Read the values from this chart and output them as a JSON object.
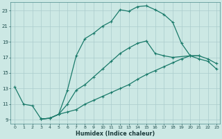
{
  "xlabel": "Humidex (Indice chaleur)",
  "bg_color": "#cce8e4",
  "grid_color": "#aacccc",
  "line_color": "#1a7a6a",
  "xlim_min": -0.5,
  "xlim_max": 23.4,
  "ylim_min": 8.5,
  "ylim_max": 24.1,
  "yticks": [
    9,
    11,
    13,
    15,
    17,
    19,
    21,
    23
  ],
  "xticks": [
    0,
    1,
    2,
    3,
    4,
    5,
    6,
    7,
    8,
    9,
    10,
    11,
    12,
    13,
    14,
    15,
    16,
    17,
    18,
    19,
    20,
    21,
    22,
    23
  ],
  "curve1_x": [
    0,
    1,
    2,
    3,
    4,
    5,
    6,
    7,
    8,
    9,
    10,
    11,
    12,
    13,
    14,
    15,
    16,
    17,
    18,
    19,
    20,
    21
  ],
  "curve1_y": [
    13.2,
    11.0,
    10.8,
    9.1,
    9.2,
    9.7,
    12.8,
    17.2,
    19.4,
    20.1,
    21.0,
    21.6,
    23.1,
    22.9,
    23.5,
    23.6,
    23.1,
    22.5,
    21.5,
    18.8,
    17.2,
    17.2
  ],
  "curve2_x": [
    3,
    4,
    5,
    6,
    7,
    8,
    9,
    10,
    11,
    12,
    13,
    14,
    15,
    16,
    17,
    18,
    20,
    21,
    22,
    23
  ],
  "curve2_y": [
    9.1,
    9.2,
    9.7,
    11.0,
    12.8,
    13.5,
    14.5,
    15.5,
    16.5,
    17.5,
    18.2,
    18.8,
    19.1,
    17.5,
    17.2,
    17.0,
    17.2,
    17.2,
    16.8,
    16.2
  ],
  "curve3_x": [
    3,
    4,
    5,
    6,
    7,
    8,
    9,
    10,
    11,
    12,
    13,
    14,
    15,
    16,
    17,
    18,
    19,
    20,
    21,
    22,
    23
  ],
  "curve3_y": [
    9.1,
    9.2,
    9.7,
    10.0,
    10.3,
    11.0,
    11.5,
    12.0,
    12.5,
    13.0,
    13.5,
    14.2,
    14.8,
    15.3,
    15.8,
    16.3,
    16.8,
    17.2,
    16.8,
    16.5,
    15.5
  ],
  "marker": "+",
  "linewidth": 0.9,
  "markersize": 3.5
}
